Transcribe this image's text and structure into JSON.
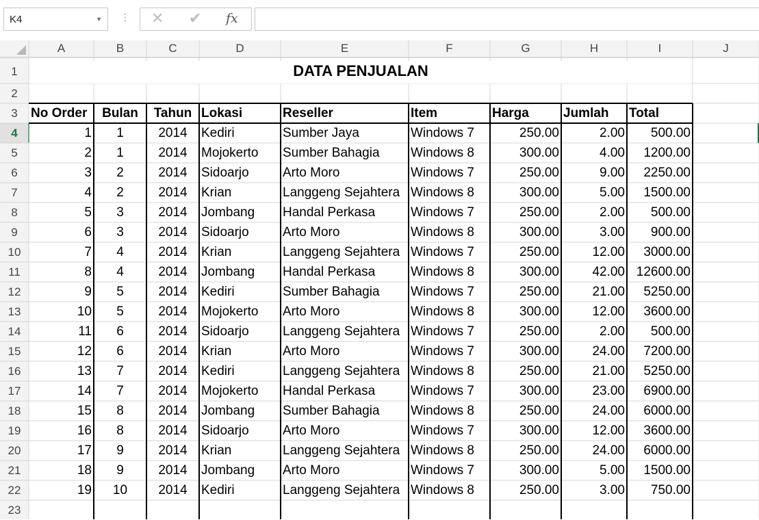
{
  "name_box": {
    "value": "K4"
  },
  "formula_bar": {
    "value": "",
    "cancel_icon": "x-icon",
    "enter_icon": "check-icon",
    "fx_label": "fx"
  },
  "columns": [
    "A",
    "B",
    "C",
    "D",
    "E",
    "F",
    "G",
    "H",
    "I",
    "J"
  ],
  "rows": [
    "1",
    "2",
    "3",
    "4",
    "5",
    "6",
    "7",
    "8",
    "9",
    "10",
    "11",
    "12",
    "13",
    "14",
    "15",
    "16",
    "17",
    "18",
    "19",
    "20",
    "21",
    "22",
    "23"
  ],
  "active_cell": "K4",
  "sheet_title": "DATA PENJUALAN",
  "table": {
    "headers": [
      "No Order",
      "Bulan",
      "Tahun",
      "Lokasi",
      "Reseller",
      "Item",
      "Harga",
      "Jumlah",
      "Total"
    ],
    "rows": [
      [
        "1",
        "1",
        "2014",
        "Kediri",
        "Sumber Jaya",
        "Windows 7",
        "250.00",
        "2.00",
        "500.00"
      ],
      [
        "2",
        "1",
        "2014",
        "Mojokerto",
        "Sumber Bahagia",
        "Windows 8",
        "300.00",
        "4.00",
        "1200.00"
      ],
      [
        "3",
        "2",
        "2014",
        "Sidoarjo",
        "Arto Moro",
        "Windows 7",
        "250.00",
        "9.00",
        "2250.00"
      ],
      [
        "4",
        "2",
        "2014",
        "Krian",
        "Langgeng Sejahtera",
        "Windows 8",
        "300.00",
        "5.00",
        "1500.00"
      ],
      [
        "5",
        "3",
        "2014",
        "Jombang",
        "Handal Perkasa",
        "Windows 7",
        "250.00",
        "2.00",
        "500.00"
      ],
      [
        "6",
        "3",
        "2014",
        "Sidoarjo",
        "Arto Moro",
        "Windows 8",
        "300.00",
        "3.00",
        "900.00"
      ],
      [
        "7",
        "4",
        "2014",
        "Krian",
        "Langgeng Sejahtera",
        "Windows 7",
        "250.00",
        "12.00",
        "3000.00"
      ],
      [
        "8",
        "4",
        "2014",
        "Jombang",
        "Handal Perkasa",
        "Windows 8",
        "300.00",
        "42.00",
        "12600.00"
      ],
      [
        "9",
        "5",
        "2014",
        "Kediri",
        "Sumber Bahagia",
        "Windows 7",
        "250.00",
        "21.00",
        "5250.00"
      ],
      [
        "10",
        "5",
        "2014",
        "Mojokerto",
        "Arto Moro",
        "Windows 8",
        "300.00",
        "12.00",
        "3600.00"
      ],
      [
        "11",
        "6",
        "2014",
        "Sidoarjo",
        "Langgeng Sejahtera",
        "Windows 7",
        "250.00",
        "2.00",
        "500.00"
      ],
      [
        "12",
        "6",
        "2014",
        "Krian",
        "Arto Moro",
        "Windows 7",
        "300.00",
        "24.00",
        "7200.00"
      ],
      [
        "13",
        "7",
        "2014",
        "Kediri",
        "Langgeng Sejahtera",
        "Windows 8",
        "250.00",
        "21.00",
        "5250.00"
      ],
      [
        "14",
        "7",
        "2014",
        "Mojokerto",
        "Handal Perkasa",
        "Windows 7",
        "300.00",
        "23.00",
        "6900.00"
      ],
      [
        "15",
        "8",
        "2014",
        "Jombang",
        "Sumber Bahagia",
        "Windows 8",
        "250.00",
        "24.00",
        "6000.00"
      ],
      [
        "16",
        "8",
        "2014",
        "Sidoarjo",
        "Arto Moro",
        "Windows 7",
        "300.00",
        "12.00",
        "3600.00"
      ],
      [
        "17",
        "9",
        "2014",
        "Krian",
        "Langgeng Sejahtera",
        "Windows 8",
        "250.00",
        "24.00",
        "6000.00"
      ],
      [
        "18",
        "9",
        "2014",
        "Jombang",
        "Arto Moro",
        "Windows 7",
        "300.00",
        "5.00",
        "1500.00"
      ],
      [
        "19",
        "10",
        "2014",
        "Kediri",
        "Langgeng Sejahtera",
        "Windows 8",
        "250.00",
        "3.00",
        "750.00"
      ]
    ]
  },
  "colors": {
    "gridline": "#d4d4d4",
    "header_text": "#444444",
    "active_header": "#217346",
    "border": "#000000"
  }
}
